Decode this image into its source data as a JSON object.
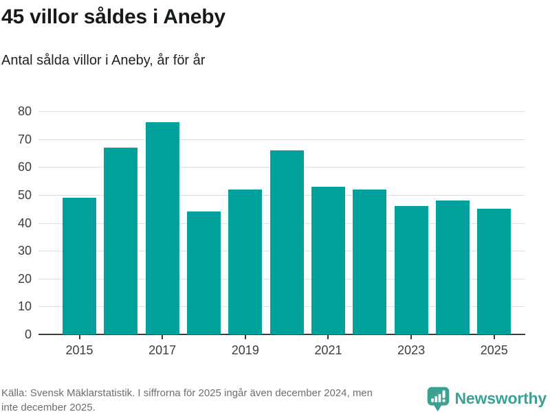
{
  "header": {
    "title": "45 villor såldes i Aneby",
    "subtitle": "Antal sålda villor i Aneby, år för år"
  },
  "chart_data": {
    "type": "bar",
    "title": "45 villor såldes i Aneby",
    "subtitle": "Antal sålda villor i Aneby, år för år",
    "categories": [
      "2015",
      "2016",
      "2017",
      "2018",
      "2019",
      "2020",
      "2021",
      "2022",
      "2023",
      "2024",
      "2025"
    ],
    "values": [
      49,
      67,
      76,
      44,
      52,
      66,
      53,
      52,
      46,
      48,
      45
    ],
    "xlabel": "",
    "ylabel": "",
    "ylim": [
      0,
      80
    ],
    "yticks": [
      0,
      10,
      20,
      30,
      40,
      50,
      60,
      70,
      80
    ],
    "xtick_labels": [
      "2015",
      "2017",
      "2019",
      "2021",
      "2023",
      "2025"
    ],
    "xtick_every": 2,
    "grid": true,
    "legend": "none",
    "bar_color": "#00a19a",
    "gridline_color": "#e0e0e0",
    "axis_color": "#3a3a3a",
    "tick_label_color": "#3d3d3d"
  },
  "footer": {
    "source_line1": "Källa: Svensk Mäklarstatistik. I siffrorna för 2025 ingår även december 2024, men",
    "source_line2": "inte december 2025.",
    "brand": "Newsworthy",
    "brand_color": "#3aa193"
  }
}
